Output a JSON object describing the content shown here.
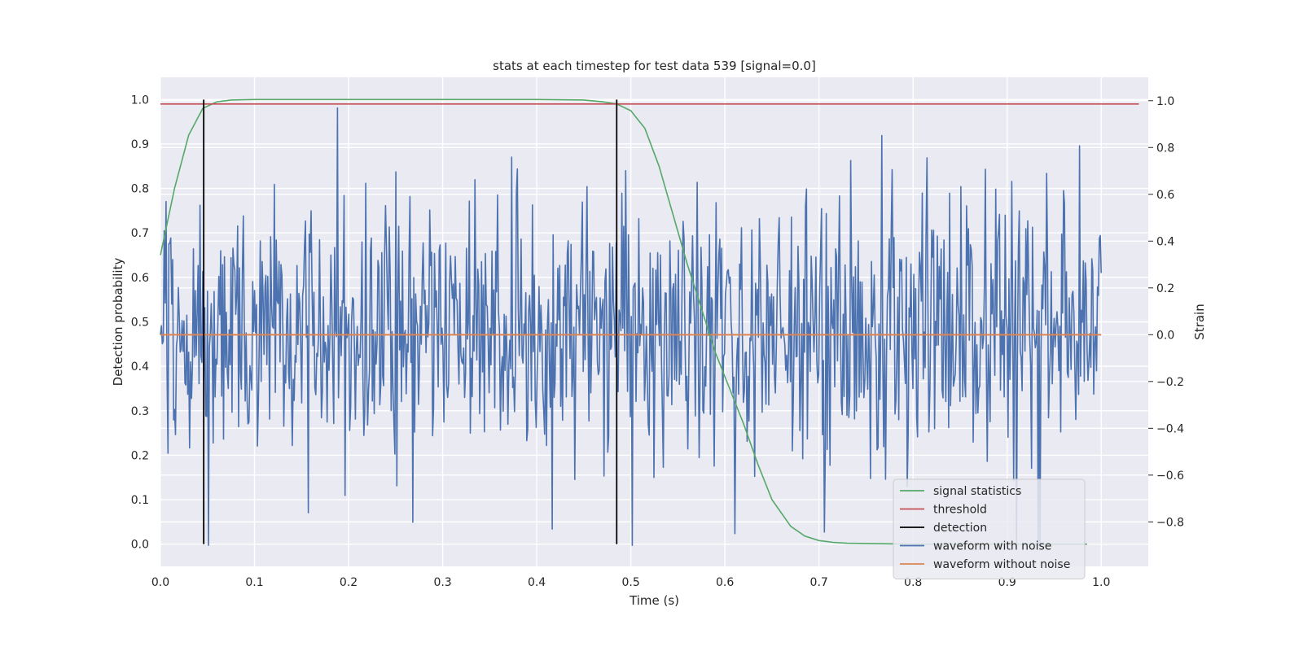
{
  "chart_data": {
    "type": "line",
    "title": "stats at each timestep for test data 539 [signal=0.0]",
    "xlabel": "Time (s)",
    "ylabel": "Detection probability",
    "ylabel_right": "Strain",
    "xlim": [
      0.0,
      1.05
    ],
    "ylim": [
      -0.05,
      1.05
    ],
    "ylim_right": [
      -0.99,
      1.1
    ],
    "xticks": [
      "0.0",
      "0.1",
      "0.2",
      "0.3",
      "0.4",
      "0.5",
      "0.6",
      "0.7",
      "0.8",
      "0.9",
      "1.0"
    ],
    "yticks": [
      "0.0",
      "0.1",
      "0.2",
      "0.3",
      "0.4",
      "0.5",
      "0.6",
      "0.7",
      "0.8",
      "0.9",
      "1.0"
    ],
    "yticks_right": [
      "−0.8",
      "−0.6",
      "−0.4",
      "−0.2",
      "0.0",
      "0.2",
      "0.4",
      "0.6",
      "0.8",
      "1.0"
    ],
    "grid": true,
    "legend_position": "lower-right",
    "colors": {
      "signal_statistics": "#55a868",
      "threshold": "#c44e52",
      "detection": "#000000",
      "waveform_with_noise": "#4c72b0",
      "waveform_without_noise": "#dd8452",
      "plot_background": "#eaeaf2",
      "grid": "#ffffff"
    },
    "series": [
      {
        "name": "signal statistics",
        "axis": "left",
        "x": [
          0.0,
          0.015,
          0.03,
          0.045,
          0.06,
          0.075,
          0.1,
          0.2,
          0.3,
          0.4,
          0.45,
          0.47,
          0.485,
          0.5,
          0.515,
          0.53,
          0.545,
          0.56,
          0.575,
          0.59,
          0.605,
          0.62,
          0.635,
          0.65,
          0.67,
          0.685,
          0.7,
          0.715,
          0.73,
          0.76,
          0.8,
          0.9,
          0.985
        ],
        "y": [
          0.65,
          0.8,
          0.92,
          0.98,
          0.995,
          0.999,
          1.0,
          1.0,
          1.0,
          1.0,
          0.999,
          0.995,
          0.99,
          0.975,
          0.935,
          0.85,
          0.74,
          0.63,
          0.53,
          0.43,
          0.35,
          0.27,
          0.18,
          0.1,
          0.04,
          0.018,
          0.008,
          0.004,
          0.002,
          0.001,
          0.0,
          0.0,
          0.0
        ]
      },
      {
        "name": "threshold",
        "axis": "left",
        "x": [
          0.0,
          1.04
        ],
        "y": [
          0.99,
          0.99
        ]
      },
      {
        "name": "detection",
        "axis": "left",
        "x": [
          0.046,
          0.485
        ],
        "y": [
          1.0,
          1.0
        ]
      },
      {
        "name": "waveform with noise",
        "axis": "right",
        "samples": 1000,
        "x_range": [
          0.0,
          1.0
        ],
        "amplitude": [
          -0.9,
          1.0
        ]
      },
      {
        "name": "waveform without noise",
        "axis": "right",
        "x": [
          0.0,
          1.0
        ],
        "y": [
          0.0,
          0.0
        ]
      }
    ],
    "legend": [
      "signal statistics",
      "threshold",
      "detection",
      "waveform with noise",
      "waveform without noise"
    ]
  }
}
